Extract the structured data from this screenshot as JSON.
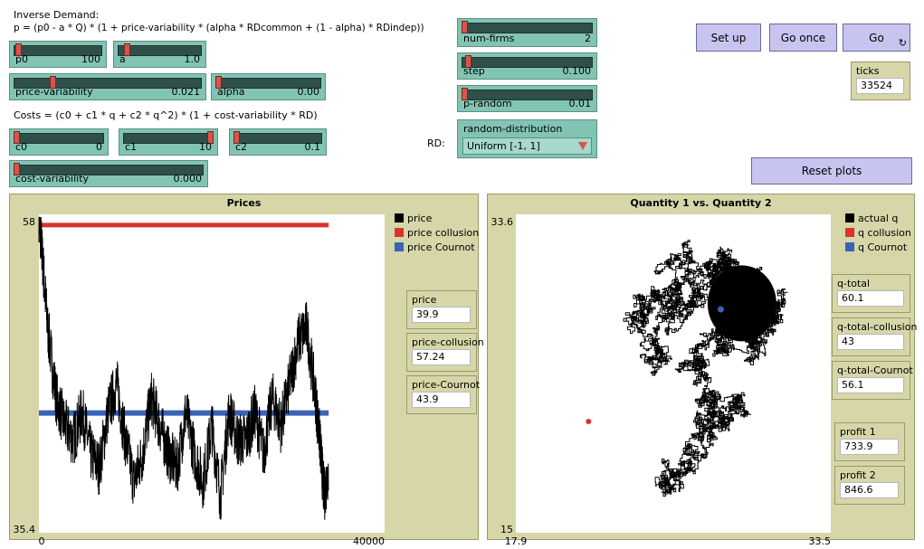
{
  "notes": {
    "demand_title": "Inverse Demand:",
    "demand_formula": "p = (p0 - a * Q) * (1 + price-variability * (alpha * RDcommon + (1 - alpha) * RDindep))",
    "costs_formula": "Costs = (c0 + c1 * q + c2 * q^2) * (1 + cost-variability * RD)",
    "rd_label": "RD:"
  },
  "sliders": {
    "p0": {
      "label": "p0",
      "value": "100",
      "fraction": 0.02
    },
    "a": {
      "label": "a",
      "value": "1.0",
      "fraction": 0.08
    },
    "price_variability": {
      "label": "price-variability",
      "value": "0.021",
      "fraction": 0.2
    },
    "alpha": {
      "label": "alpha",
      "value": "0.00",
      "fraction": 0.0
    },
    "c0": {
      "label": "c0",
      "value": "0",
      "fraction": 0.0
    },
    "c1": {
      "label": "c1",
      "value": "10",
      "fraction": 1.0
    },
    "c2": {
      "label": "c2",
      "value": "0.1",
      "fraction": 0.0
    },
    "cost_variability": {
      "label": "cost-variability",
      "value": "0.000",
      "fraction": 0.0
    },
    "num_firms": {
      "label": "num-firms",
      "value": "2",
      "fraction": 0.0
    },
    "step": {
      "label": "step",
      "value": "0.100",
      "fraction": 0.03
    },
    "p_random": {
      "label": "p-random",
      "value": "0.01",
      "fraction": 0.0
    }
  },
  "chooser": {
    "label": "random-distribution",
    "value": "Uniform [-1, 1]"
  },
  "buttons": {
    "setup": "Set up",
    "go_once": "Go once",
    "go": "Go",
    "reset": "Reset plots"
  },
  "monitors": {
    "ticks": {
      "label": "ticks",
      "value": "33524"
    },
    "price": {
      "label": "price",
      "value": "39.9"
    },
    "price_collusion": {
      "label": "price-collusion",
      "value": "57.24"
    },
    "price_cournot": {
      "label": "price-Cournot",
      "value": "43.9"
    },
    "q_total": {
      "label": "q-total",
      "value": "60.1"
    },
    "q_total_collusion": {
      "label": "q-total-collusion",
      "value": "43"
    },
    "q_total_cournot": {
      "label": "q-total-Cournot",
      "value": "56.1"
    },
    "profit1": {
      "label": "profit 1",
      "value": "733.9"
    },
    "profit2": {
      "label": "profit 2",
      "value": "846.6"
    }
  },
  "colors": {
    "collusion": "#d9332b",
    "cournot": "#3a63b8",
    "actual": "#000000"
  },
  "chart_data": [
    {
      "type": "line",
      "title": "Prices",
      "xlim": [
        0,
        40000
      ],
      "ylim": [
        35.4,
        58
      ],
      "x_tick_labels": [
        "0",
        "40000"
      ],
      "y_tick_labels": [
        "58",
        "35.4"
      ],
      "series": [
        {
          "name": "price",
          "x": [
            0,
            400,
            1000,
            2000,
            3000,
            4000,
            5000,
            6000,
            7000,
            8000,
            9000,
            10000,
            11000,
            12000,
            13000,
            14000,
            15000,
            16000,
            17000,
            18000,
            19000,
            20000,
            21000,
            22000,
            23000,
            24000,
            25000,
            26000,
            27000,
            28000,
            29000,
            30000,
            31000,
            32000,
            32500,
            33000,
            33524
          ],
          "y": [
            58,
            55,
            50,
            45,
            43,
            42,
            44,
            41,
            40,
            44,
            46,
            42,
            39,
            41,
            45,
            43,
            41,
            40,
            44,
            41,
            39,
            43,
            38,
            44,
            42,
            42,
            44,
            41,
            45,
            43,
            46,
            49,
            50,
            45,
            42,
            38,
            40
          ]
        },
        {
          "name": "price collusion",
          "x": [
            0,
            40000
          ],
          "y": [
            57.24,
            57.24
          ]
        },
        {
          "name": "price Cournot",
          "x": [
            0,
            40000
          ],
          "y": [
            43.9,
            43.9
          ]
        }
      ]
    },
    {
      "type": "scatter",
      "title": "Quantity 1 vs. Quantity 2",
      "xlim": [
        17.9,
        33.5
      ],
      "ylim": [
        15,
        33.6
      ],
      "x_tick_labels": [
        "17.9",
        "33.5"
      ],
      "y_tick_labels": [
        "33.6",
        "15"
      ],
      "series": [
        {
          "name": "actual q",
          "x": [
            28.6,
            27.5,
            26.0,
            25.2,
            24.0,
            24.6,
            25.8,
            27.0,
            28.5,
            30.0,
            30.6,
            29.8,
            28.2,
            27.2,
            27.8,
            28.6,
            27.6,
            26.2,
            25.6
          ],
          "y": [
            29.1,
            31.5,
            30.2,
            28.6,
            27.0,
            25.5,
            28.4,
            29.6,
            30.8,
            29.0,
            27.2,
            25.7,
            26.4,
            24.5,
            23.0,
            21.8,
            20.8,
            19.6,
            18.0
          ]
        },
        {
          "name": "q collusion",
          "x": [
            21.5
          ],
          "y": [
            21.5
          ]
        },
        {
          "name": "q Cournot",
          "x": [
            28.05
          ],
          "y": [
            28.05
          ]
        }
      ]
    }
  ]
}
